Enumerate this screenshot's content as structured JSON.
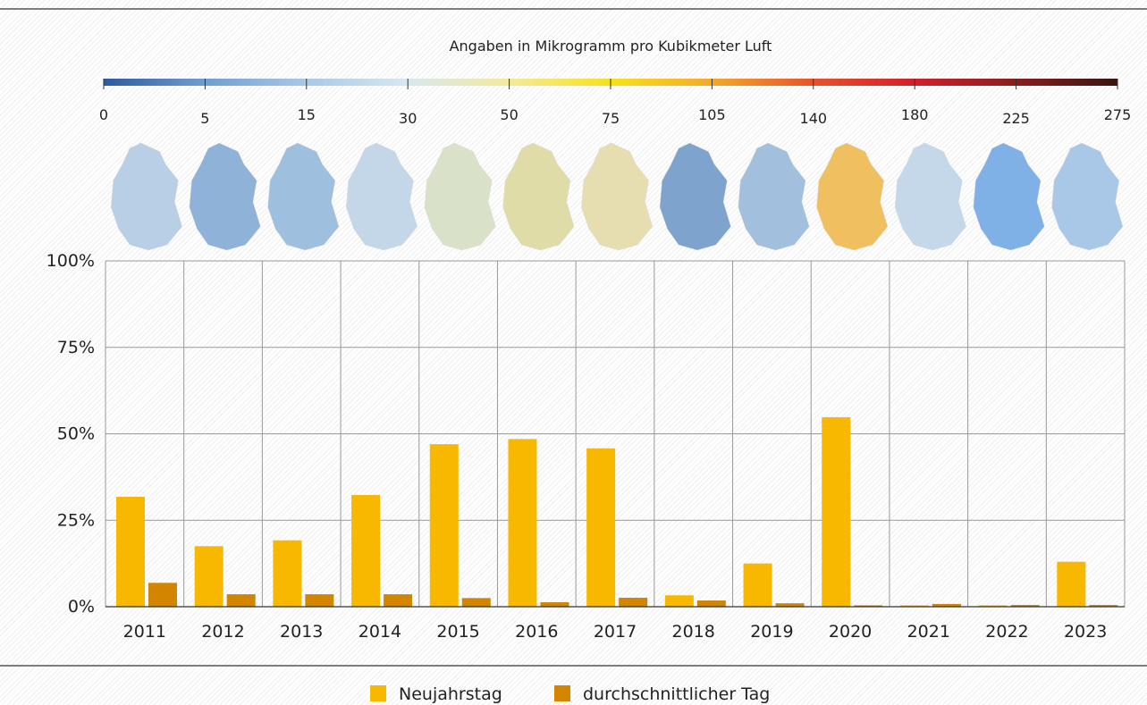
{
  "chart_data": {
    "type": "bar",
    "colorbar": {
      "title": "Angaben in Mikrogramm pro Kubikmeter Luft",
      "ticks": [
        0,
        5,
        15,
        30,
        50,
        75,
        105,
        140,
        180,
        225,
        275
      ],
      "colors": [
        "#2c5aa0",
        "#6f9fd0",
        "#a9c8e6",
        "#d8e8f0",
        "#f3ea9c",
        "#f7e21a",
        "#f4a92a",
        "#e8522a",
        "#d21f2a",
        "#8c1e1e",
        "#3a1410"
      ]
    },
    "categories": [
      "2011",
      "2012",
      "2013",
      "2014",
      "2015",
      "2016",
      "2017",
      "2018",
      "2019",
      "2020",
      "2021",
      "2022",
      "2023"
    ],
    "series": [
      {
        "name": "Neujahrstag",
        "color": "#f9b800",
        "values": [
          31.8,
          17.5,
          19.2,
          32.3,
          47,
          48.5,
          45.8,
          3.3,
          12.5,
          54.8,
          0.4,
          0.4,
          13
        ]
      },
      {
        "name": "durchschnittlicher Tag",
        "color": "#d48500",
        "values": [
          6.9,
          3.6,
          3.6,
          3.6,
          2.5,
          1.3,
          2.6,
          1.8,
          1.0,
          0.4,
          0.8,
          0.5,
          0.5
        ]
      }
    ],
    "ylim": [
      0,
      100
    ],
    "yticks": [
      {
        "value": 0,
        "label": "0%"
      },
      {
        "value": 25,
        "label": "25%"
      },
      {
        "value": 50,
        "label": "50%"
      },
      {
        "value": 75,
        "label": "75%"
      },
      {
        "value": 100,
        "label": "100%"
      }
    ],
    "grid": true
  }
}
